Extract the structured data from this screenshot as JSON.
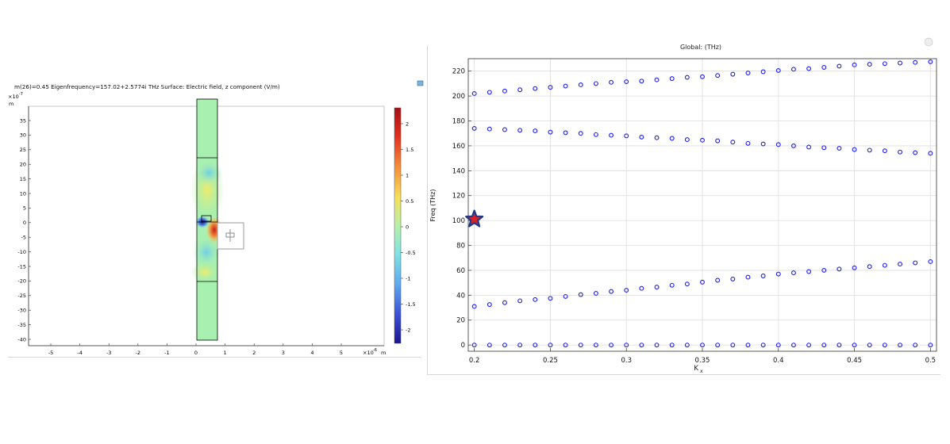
{
  "left_plot": {
    "header": "m(26)=0.45 Eigenfrequency=157.02+2.5774i THz   Surface: Electric field, z component (V/m)",
    "y_exponent": "×10",
    "y_exponent_power": "-7",
    "y_unit": "m",
    "x_exponent": "×10",
    "x_exponent_power": "-6",
    "x_unit": "m",
    "x_ticks": [
      "-5",
      "-4",
      "-3",
      "-2",
      "-1",
      "0",
      "1",
      "2",
      "3",
      "4",
      "5"
    ],
    "y_ticks": [
      "35",
      "30",
      "25",
      "20",
      "15",
      "10",
      "5",
      "0",
      "-5",
      "-10",
      "-15",
      "-20",
      "-25",
      "-30",
      "-35",
      "-40"
    ],
    "colorbar_ticks": [
      "2",
      "1.5",
      "1",
      "0.5",
      "0",
      "-0.5",
      "-1",
      "-1.5",
      "-2"
    ],
    "colors": {
      "background_field": "#a8f0b0",
      "frame": "#000000"
    }
  },
  "chart_data": {
    "type": "scatter",
    "title": "Global:  (THz)",
    "xlabel": "K",
    "xlabel_sub": "x",
    "ylabel": "Freq (THz)",
    "xlim": [
      0.196,
      0.504
    ],
    "ylim": [
      -5,
      230
    ],
    "x_ticks": [
      0.2,
      0.25,
      0.3,
      0.35,
      0.4,
      0.45,
      0.5
    ],
    "x_tick_labels": [
      "0.2",
      "0.25",
      "0.3",
      "0.35",
      "0.4",
      "0.45",
      "0.5"
    ],
    "y_ticks": [
      0,
      20,
      40,
      60,
      80,
      100,
      120,
      140,
      160,
      180,
      200,
      220
    ],
    "y_tick_labels": [
      "0",
      "20",
      "40",
      "60",
      "80",
      "100",
      "120",
      "140",
      "160",
      "180",
      "200",
      "220"
    ],
    "grid": true,
    "marker_color": "#1a1aff",
    "x": [
      0.2,
      0.21,
      0.22,
      0.23,
      0.24,
      0.25,
      0.26,
      0.27,
      0.28,
      0.29,
      0.3,
      0.31,
      0.32,
      0.33,
      0.34,
      0.35,
      0.36,
      0.37,
      0.38,
      0.39,
      0.4,
      0.41,
      0.42,
      0.43,
      0.44,
      0.45,
      0.46,
      0.47,
      0.48,
      0.49,
      0.5
    ],
    "series": [
      {
        "values": [
          0,
          0,
          0,
          0,
          0,
          0,
          0,
          0,
          0,
          0,
          0,
          0,
          0,
          0,
          0,
          0,
          0,
          0,
          0,
          0,
          0,
          0,
          0,
          0,
          0,
          0,
          0,
          0,
          0,
          0,
          0
        ]
      },
      {
        "values": [
          31,
          32.5,
          34,
          35.5,
          36.5,
          37.5,
          39,
          40.5,
          41.5,
          43,
          44,
          45.5,
          46.5,
          48,
          49,
          50.5,
          52,
          53,
          54.5,
          55.5,
          57,
          58,
          59,
          60,
          61,
          62,
          63,
          64,
          65,
          66,
          67
        ]
      },
      {
        "values": [
          174,
          173.5,
          173,
          172.5,
          172,
          171,
          170.5,
          170,
          169,
          168.5,
          168,
          167,
          166.5,
          166,
          165,
          164.5,
          164,
          163,
          162,
          161.5,
          161,
          160,
          159,
          158.5,
          158,
          157,
          156.5,
          156,
          155,
          154.5,
          154
        ]
      },
      {
        "values": [
          202,
          203,
          204,
          205,
          206,
          207,
          208,
          209,
          210,
          211,
          211.5,
          212,
          213,
          214,
          215,
          215.5,
          216.5,
          217.5,
          218.5,
          219.5,
          220.5,
          221.5,
          222,
          223,
          224,
          225,
          225.5,
          226,
          226.5,
          227,
          227.5
        ]
      }
    ],
    "highlight": {
      "x": 0.2,
      "y": 101,
      "marker": "star",
      "fill": "#d8202a",
      "stroke": "#1f3a8a"
    }
  }
}
